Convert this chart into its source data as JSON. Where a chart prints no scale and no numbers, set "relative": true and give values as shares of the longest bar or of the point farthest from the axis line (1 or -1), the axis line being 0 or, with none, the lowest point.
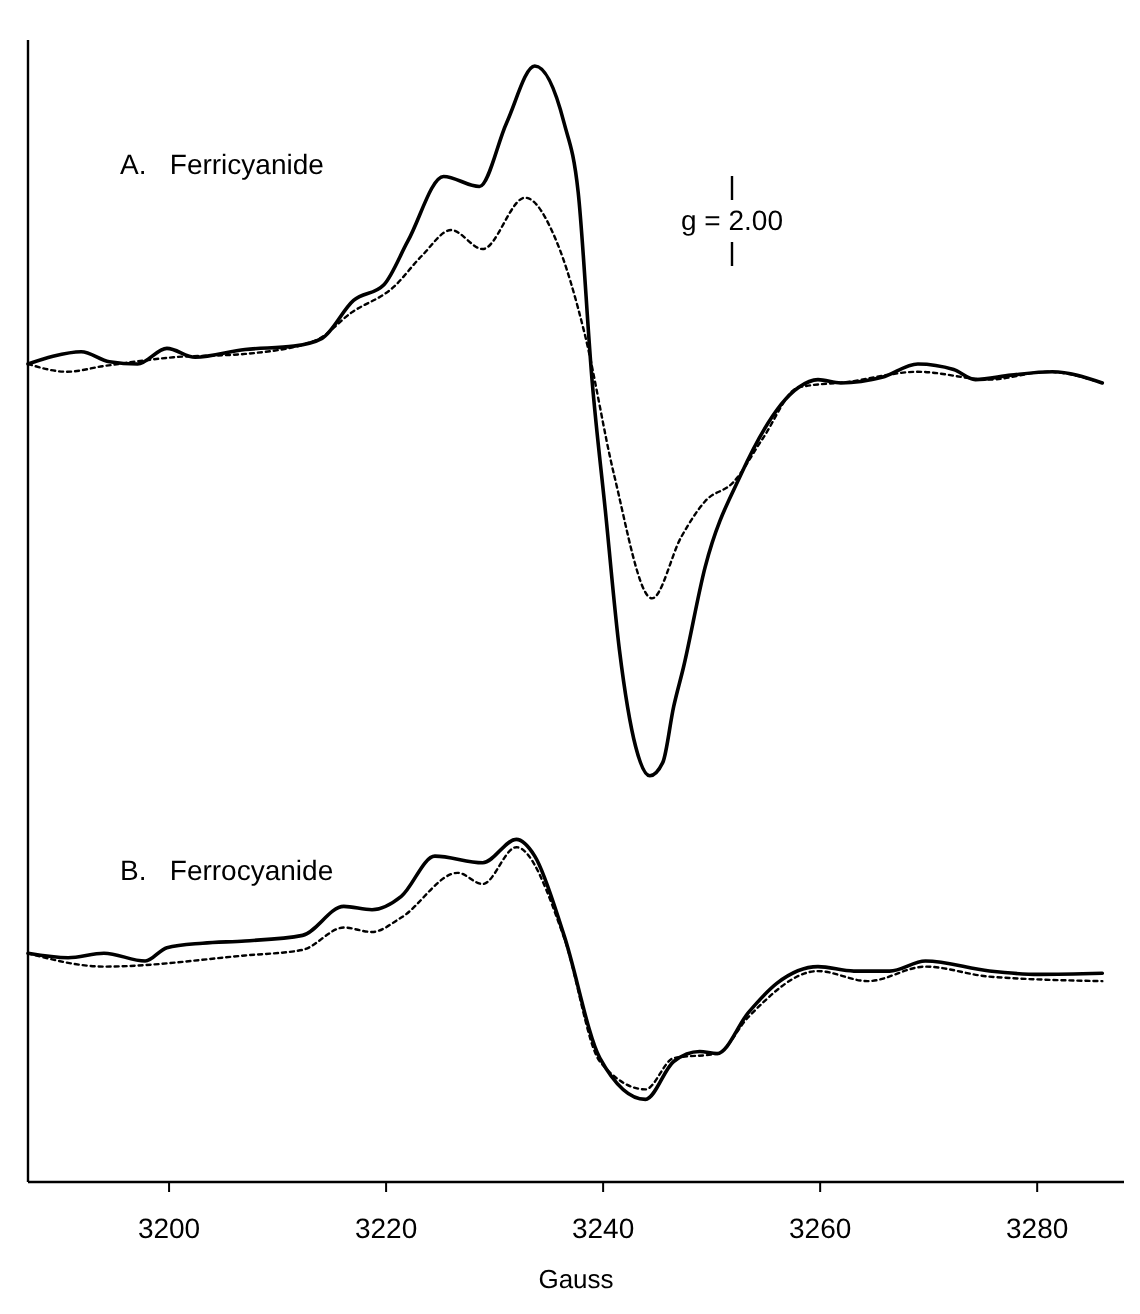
{
  "chart_data": {
    "type": "line",
    "relative": true,
    "xlabel": "Gauss",
    "xlim": [
      3187,
      3288
    ],
    "xticks": [
      3200,
      3220,
      3240,
      3260,
      3280
    ],
    "grid": false,
    "annotations": [
      "A.   Ferricyanide",
      "B.   Ferrocyanide",
      "g = 2.00"
    ],
    "series": [
      {
        "color": "#000000",
        "line_style": "solid",
        "x": [
          3187,
          3189.3,
          3191.9,
          3194.5,
          3197.1,
          3199.8,
          3202.4,
          3207.0,
          3211.5,
          3214.1,
          3217.0,
          3219.8,
          3222.0,
          3225.3,
          3228.6,
          3231.1,
          3233.7,
          3236.4,
          3237.7,
          3239.0,
          3240.2,
          3241.5,
          3243,
          3244.3,
          3245.5,
          3246.5,
          3247.4,
          3249.4,
          3252.7,
          3258.0,
          3259.8,
          3261.9,
          3265.7,
          3269.0,
          3272.3,
          3274.3,
          3277.6,
          3281.4,
          3286.0
        ],
        "values": [
          0.733,
          0.74,
          0.744,
          0.735,
          0.733,
          0.747,
          0.739,
          0.746,
          0.749,
          0.756,
          0.79,
          0.804,
          0.843,
          0.901,
          0.892,
          0.949,
          1.0,
          0.949,
          0.887,
          0.716,
          0.602,
          0.477,
          0.39,
          0.364,
          0.376,
          0.426,
          0.461,
          0.551,
          0.634,
          0.712,
          0.719,
          0.716,
          0.721,
          0.733,
          0.728,
          0.719,
          0.723,
          0.726,
          0.716
        ]
      },
      {
        "color": "#000000",
        "line_style": "dotted",
        "x": [
          3187,
          3190.6,
          3193.9,
          3200.4,
          3207,
          3213.5,
          3216.8,
          3220.7,
          3223.3,
          3226,
          3228.9,
          3232.8,
          3235.7,
          3238.3,
          3241,
          3244.5,
          3247.2,
          3249.4,
          3252,
          3254.7,
          3258,
          3262.6,
          3269,
          3275.6,
          3280.9,
          3286
        ],
        "values": [
          0.733,
          0.726,
          0.731,
          0.739,
          0.742,
          0.754,
          0.779,
          0.802,
          0.83,
          0.853,
          0.836,
          0.882,
          0.843,
          0.76,
          0.634,
          0.523,
          0.578,
          0.61,
          0.627,
          0.666,
          0.712,
          0.717,
          0.726,
          0.719,
          0.726,
          0.716
        ]
      },
      {
        "color": "#000000",
        "line_style": "solid",
        "x": [
          3187,
          3190.7,
          3194,
          3197.8,
          3199.8,
          3203.1,
          3207,
          3212.3,
          3216.1,
          3218.7,
          3221.4,
          3224.5,
          3228.9,
          3232,
          3233.7,
          3236.4,
          3239.7,
          3243.9,
          3246.5,
          3248.9,
          3250.5,
          3253.4,
          3256,
          3259.8,
          3263.1,
          3266.4,
          3269.7,
          3275.6,
          3280.2,
          3286
        ],
        "values": [
          0.205,
          0.201,
          0.205,
          0.198,
          0.21,
          0.214,
          0.216,
          0.221,
          0.247,
          0.244,
          0.256,
          0.292,
          0.286,
          0.307,
          0.292,
          0.221,
          0.111,
          0.074,
          0.108,
          0.117,
          0.115,
          0.152,
          0.178,
          0.193,
          0.189,
          0.189,
          0.198,
          0.189,
          0.186,
          0.187
        ]
      },
      {
        "color": "#000000",
        "line_style": "dotted",
        "x": [
          3187,
          3194,
          3207,
          3212.3,
          3216.1,
          3218.7,
          3221.4,
          3226.6,
          3228.9,
          3232,
          3236.4,
          3239.7,
          3243.9,
          3246.5,
          3250.5,
          3253.4,
          3259.8,
          3264.4,
          3269.7,
          3275.6,
          3286
        ],
        "values": [
          0.205,
          0.193,
          0.203,
          0.208,
          0.228,
          0.224,
          0.237,
          0.277,
          0.267,
          0.3,
          0.219,
          0.108,
          0.083,
          0.111,
          0.115,
          0.148,
          0.189,
          0.18,
          0.193,
          0.184,
          0.18
        ]
      }
    ]
  }
}
